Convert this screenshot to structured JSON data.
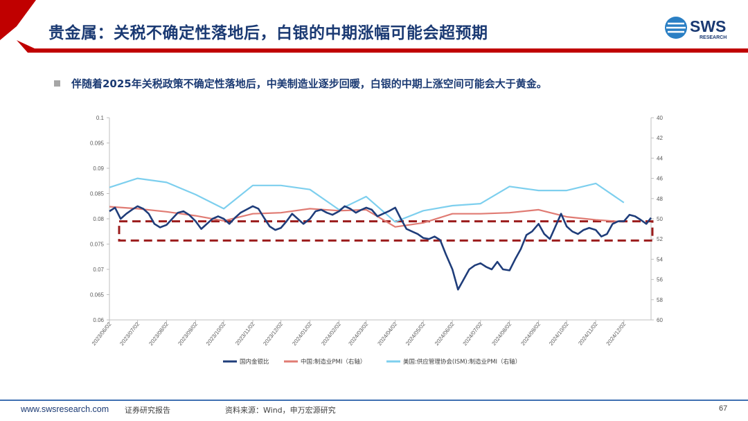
{
  "header": {
    "title": "贵金属：关税不确定性落地后，白银的中期涨幅可能会超预期",
    "logo_text": "SWS",
    "logo_subtext": "RESEARCH",
    "accent_color": "#c00000",
    "brand_color": "#1b3a73"
  },
  "subtitle": "伴随着2025年关税政策不确定性落地后，中美制造业逐步回暖，白银的中期上涨空间可能会大于黄金。",
  "footer": {
    "url": "www.swsresearch.com",
    "report_type": "证券研究报告",
    "source": "资料来源：Wind，申万宏源研究",
    "page": "67"
  },
  "chart_data": {
    "type": "line",
    "x_ticks": [
      "2023/06/02",
      "2023/07/02",
      "2023/08/02",
      "2023/09/02",
      "2023/10/02",
      "2023/11/02",
      "2023/12/02",
      "2024/01/02",
      "2024/02/02",
      "2024/03/02",
      "2024/04/02",
      "2024/05/02",
      "2024/06/02",
      "2024/07/02",
      "2024/08/02",
      "2024/09/02",
      "2024/10/02",
      "2024/11/02",
      "2024/12/02"
    ],
    "x_range": [
      "2023/06/02",
      "2024/12/31"
    ],
    "y_left": {
      "ylim": [
        0.06,
        0.1
      ],
      "ticks": [
        "0.06",
        "0.065",
        "0.07",
        "0.075",
        "0.08",
        "0.085",
        "0.09",
        "0.095",
        "0.1"
      ]
    },
    "y_right": {
      "ylim": [
        60,
        40
      ],
      "reversed": true,
      "ticks": [
        "40",
        "42",
        "44",
        "46",
        "48",
        "50",
        "52",
        "54",
        "56",
        "58",
        "60"
      ]
    },
    "legend_position": "bottom",
    "series": [
      {
        "name": "国内金银比",
        "axis": "left",
        "color": "#1f3d7a",
        "points": [
          [
            "2023/06/02",
            0.0815
          ],
          [
            "2023/06/08",
            0.0822
          ],
          [
            "2023/06/14",
            0.08
          ],
          [
            "2023/06/20",
            0.081
          ],
          [
            "2023/06/26",
            0.0818
          ],
          [
            "2023/07/02",
            0.0825
          ],
          [
            "2023/07/08",
            0.082
          ],
          [
            "2023/07/14",
            0.081
          ],
          [
            "2023/07/20",
            0.079
          ],
          [
            "2023/07/26",
            0.0783
          ],
          [
            "2023/08/02",
            0.0788
          ],
          [
            "2023/08/08",
            0.08
          ],
          [
            "2023/08/14",
            0.0812
          ],
          [
            "2023/08/20",
            0.0815
          ],
          [
            "2023/08/26",
            0.0808
          ],
          [
            "2023/09/02",
            0.0795
          ],
          [
            "2023/09/08",
            0.078
          ],
          [
            "2023/09/14",
            0.079
          ],
          [
            "2023/09/20",
            0.08
          ],
          [
            "2023/09/26",
            0.0805
          ],
          [
            "2023/10/02",
            0.08
          ],
          [
            "2023/10/08",
            0.079
          ],
          [
            "2023/10/14",
            0.0802
          ],
          [
            "2023/10/20",
            0.0812
          ],
          [
            "2023/10/26",
            0.0818
          ],
          [
            "2023/11/02",
            0.0825
          ],
          [
            "2023/11/08",
            0.082
          ],
          [
            "2023/11/14",
            0.0802
          ],
          [
            "2023/11/20",
            0.0785
          ],
          [
            "2023/11/26",
            0.0778
          ],
          [
            "2023/12/02",
            0.0782
          ],
          [
            "2023/12/08",
            0.0795
          ],
          [
            "2023/12/14",
            0.081
          ],
          [
            "2023/12/20",
            0.08
          ],
          [
            "2023/12/26",
            0.079
          ],
          [
            "2024/01/02",
            0.08
          ],
          [
            "2024/01/08",
            0.0815
          ],
          [
            "2024/01/14",
            0.0818
          ],
          [
            "2024/01/20",
            0.0812
          ],
          [
            "2024/01/26",
            0.0808
          ],
          [
            "2024/02/02",
            0.0815
          ],
          [
            "2024/02/08",
            0.0825
          ],
          [
            "2024/02/14",
            0.082
          ],
          [
            "2024/02/20",
            0.0812
          ],
          [
            "2024/02/26",
            0.0818
          ],
          [
            "2024/03/02",
            0.0822
          ],
          [
            "2024/03/08",
            0.0818
          ],
          [
            "2024/03/14",
            0.0805
          ],
          [
            "2024/03/20",
            0.081
          ],
          [
            "2024/03/26",
            0.0815
          ],
          [
            "2024/04/02",
            0.0822
          ],
          [
            "2024/04/08",
            0.08
          ],
          [
            "2024/04/14",
            0.078
          ],
          [
            "2024/04/20",
            0.0775
          ],
          [
            "2024/04/26",
            0.077
          ],
          [
            "2024/05/02",
            0.0762
          ],
          [
            "2024/05/08",
            0.076
          ],
          [
            "2024/05/14",
            0.0765
          ],
          [
            "2024/05/20",
            0.0758
          ],
          [
            "2024/05/26",
            0.073
          ],
          [
            "2024/06/02",
            0.07
          ],
          [
            "2024/06/08",
            0.066
          ],
          [
            "2024/06/14",
            0.068
          ],
          [
            "2024/06/20",
            0.07
          ],
          [
            "2024/06/26",
            0.0708
          ],
          [
            "2024/07/02",
            0.0712
          ],
          [
            "2024/07/08",
            0.0705
          ],
          [
            "2024/07/14",
            0.07
          ],
          [
            "2024/07/20",
            0.0715
          ],
          [
            "2024/07/26",
            0.07
          ],
          [
            "2024/08/02",
            0.0698
          ],
          [
            "2024/08/08",
            0.072
          ],
          [
            "2024/08/14",
            0.074
          ],
          [
            "2024/08/20",
            0.0768
          ],
          [
            "2024/08/26",
            0.0775
          ],
          [
            "2024/09/02",
            0.079
          ],
          [
            "2024/09/08",
            0.077
          ],
          [
            "2024/09/14",
            0.076
          ],
          [
            "2024/09/20",
            0.0785
          ],
          [
            "2024/09/26",
            0.081
          ],
          [
            "2024/10/02",
            0.0785
          ],
          [
            "2024/10/08",
            0.0775
          ],
          [
            "2024/10/14",
            0.077
          ],
          [
            "2024/10/20",
            0.0778
          ],
          [
            "2024/10/26",
            0.0782
          ],
          [
            "2024/11/02",
            0.0778
          ],
          [
            "2024/11/08",
            0.0765
          ],
          [
            "2024/11/14",
            0.077
          ],
          [
            "2024/11/20",
            0.079
          ],
          [
            "2024/11/26",
            0.0795
          ],
          [
            "2024/12/02",
            0.0795
          ],
          [
            "2024/12/08",
            0.0808
          ],
          [
            "2024/12/14",
            0.0805
          ],
          [
            "2024/12/20",
            0.0798
          ],
          [
            "2024/12/26",
            0.079
          ],
          [
            "2024/12/31",
            0.0802
          ]
        ]
      },
      {
        "name": "中国:制造业PMI（右轴）",
        "axis": "right",
        "color": "#e07b73",
        "points": [
          [
            "2023/06/02",
            48.8
          ],
          [
            "2023/07/02",
            49.0
          ],
          [
            "2023/08/02",
            49.3
          ],
          [
            "2023/09/02",
            49.7
          ],
          [
            "2023/10/02",
            50.2
          ],
          [
            "2023/11/02",
            49.5
          ],
          [
            "2023/12/02",
            49.4
          ],
          [
            "2024/01/02",
            49.0
          ],
          [
            "2024/02/02",
            49.2
          ],
          [
            "2024/03/02",
            49.1
          ],
          [
            "2024/04/02",
            50.8
          ],
          [
            "2024/05/02",
            50.4
          ],
          [
            "2024/06/02",
            49.5
          ],
          [
            "2024/07/02",
            49.5
          ],
          [
            "2024/08/02",
            49.4
          ],
          [
            "2024/09/02",
            49.1
          ],
          [
            "2024/10/02",
            49.8
          ],
          [
            "2024/11/02",
            50.1
          ],
          [
            "2024/12/02",
            50.3
          ]
        ]
      },
      {
        "name": "美国:供应管理协会(ISM):制造业PMI（右轴）",
        "axis": "right",
        "color": "#7dcfee",
        "points": [
          [
            "2023/06/02",
            46.9
          ],
          [
            "2023/07/02",
            46.0
          ],
          [
            "2023/08/02",
            46.4
          ],
          [
            "2023/09/02",
            47.6
          ],
          [
            "2023/10/02",
            49.0
          ],
          [
            "2023/11/02",
            46.7
          ],
          [
            "2023/12/02",
            46.7
          ],
          [
            "2024/01/02",
            47.1
          ],
          [
            "2024/02/02",
            49.1
          ],
          [
            "2024/03/02",
            47.8
          ],
          [
            "2024/04/02",
            50.3
          ],
          [
            "2024/05/02",
            49.2
          ],
          [
            "2024/06/02",
            48.7
          ],
          [
            "2024/07/02",
            48.5
          ],
          [
            "2024/08/02",
            46.8
          ],
          [
            "2024/09/02",
            47.2
          ],
          [
            "2024/10/02",
            47.2
          ],
          [
            "2024/11/02",
            46.5
          ],
          [
            "2024/12/02",
            48.4
          ]
        ]
      }
    ],
    "highlight_box": {
      "y_left_range": [
        0.0757,
        0.0795
      ],
      "color": "#9b1c1c",
      "style": "dashed"
    }
  }
}
